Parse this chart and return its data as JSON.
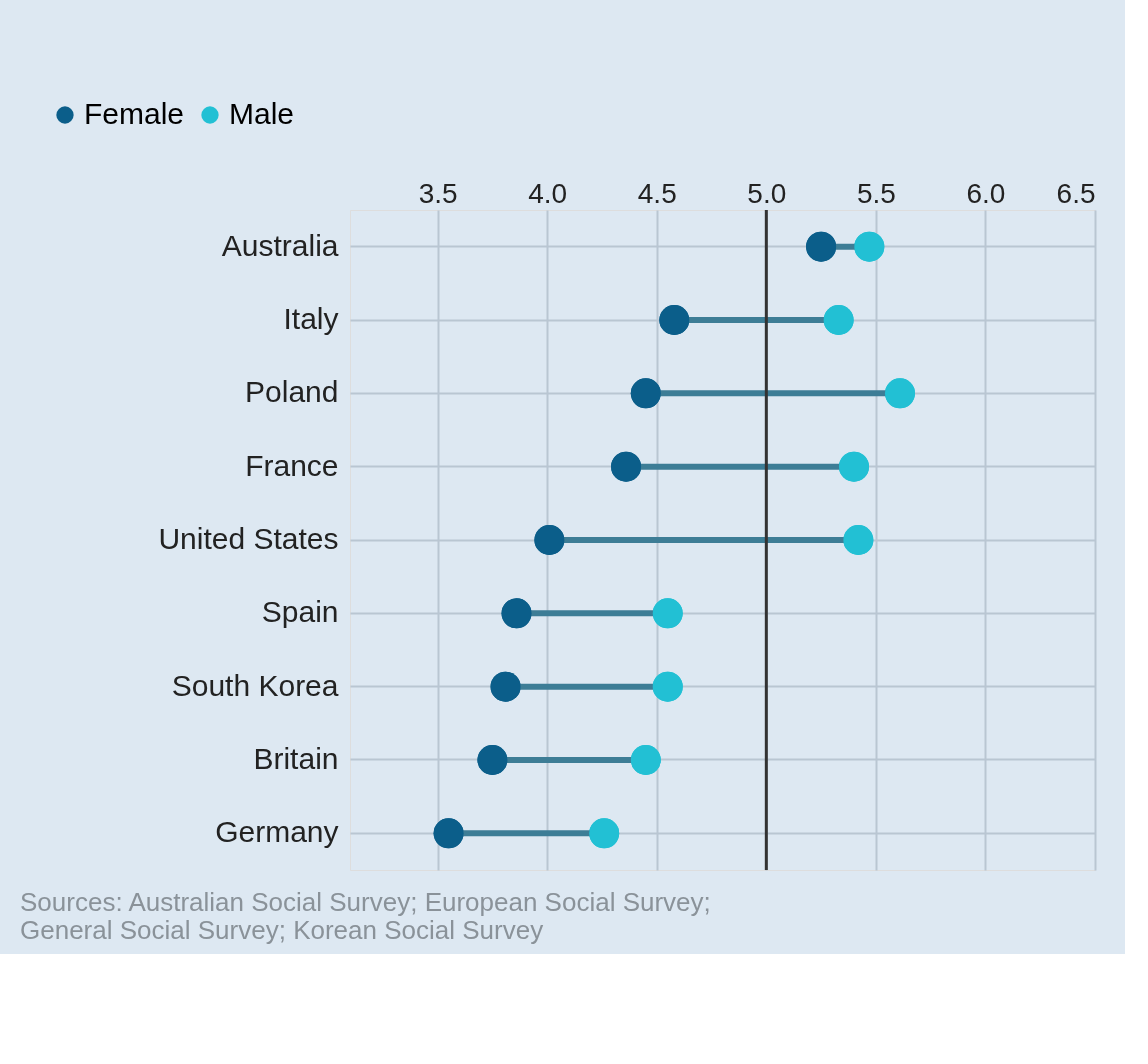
{
  "chart_data": {
    "type": "scatter",
    "categories": [
      "Australia",
      "Italy",
      "Poland",
      "France",
      "United States",
      "Spain",
      "South Korea",
      "Britain",
      "Germany"
    ],
    "series": [
      {
        "name": "Female",
        "color": "#0b5e8a",
        "values": [
          5.25,
          4.58,
          4.45,
          4.36,
          4.01,
          3.86,
          3.81,
          3.75,
          3.55
        ]
      },
      {
        "name": "Male",
        "color": "#22c0d4",
        "values": [
          5.47,
          5.33,
          5.61,
          5.4,
          5.42,
          4.55,
          4.55,
          4.45,
          4.26
        ]
      }
    ],
    "xlim": [
      3.1,
      6.5
    ],
    "xticks": [
      3.5,
      {
        "value": 4,
        "label": "4.0"
      },
      4.5,
      {
        "value": 5,
        "label": "5.0"
      },
      5.5,
      {
        "value": 6,
        "label": "6.0"
      },
      6.5
    ],
    "ref_lines": [
      {
        "axis": "x",
        "value": 5.0,
        "color": "#333333"
      }
    ],
    "orientation": "horizontal",
    "grid": true,
    "legend": "top left",
    "marker": "circle",
    "annotations": [
      "Sources: Australian Social Survey; European Social Survey;",
      "General Social Survey; Korean Social Survey"
    ]
  }
}
